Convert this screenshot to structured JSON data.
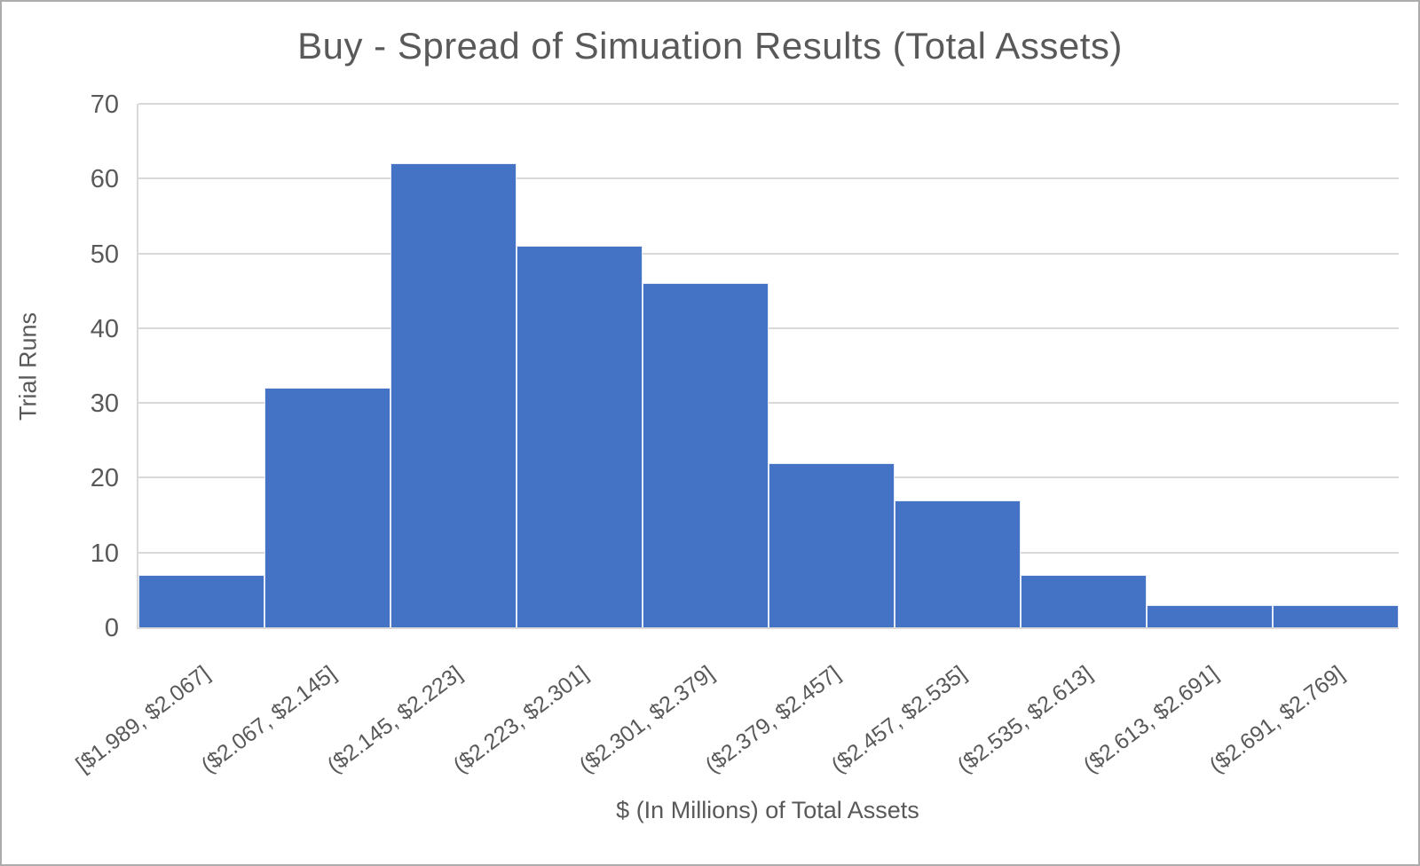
{
  "chart_data": {
    "type": "bar",
    "subtype": "histogram",
    "title": "Buy - Spread of Simuation Results (Total Assets)",
    "xlabel": "$ (In Millions) of Total Assets",
    "ylabel": "Trial Runs",
    "categories": [
      "[$1.989, $2.067]",
      "($2.067, $2.145]",
      "($2.145, $2.223]",
      "($2.223, $2.301]",
      "($2.301, $2.379]",
      "($2.379, $2.457]",
      "($2.457, $2.535]",
      "($2.535, $2.613]",
      "($2.613, $2.691]",
      "($2.691, $2.769]"
    ],
    "values": [
      7,
      32,
      62,
      51,
      46,
      22,
      17,
      7,
      3,
      3
    ],
    "ylim": [
      0,
      70
    ],
    "yticks": [
      0,
      10,
      20,
      30,
      40,
      50,
      60,
      70
    ],
    "grid": "horizontal",
    "legend": "none",
    "bar_gap": 0,
    "x_tick_label_rotation_deg": -37,
    "colors": {
      "bar": "#4472C4",
      "bar_border": "#E4EAF7",
      "gridline": "#D9D9D9",
      "text": "#595959",
      "frame_border": "#ACACAC"
    }
  }
}
